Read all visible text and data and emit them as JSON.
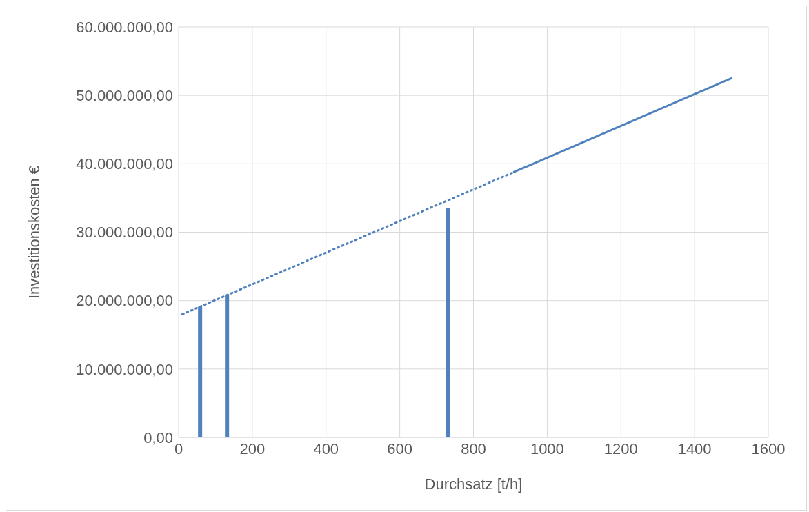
{
  "chart_data": {
    "type": "line",
    "xlabel": "Durchsatz [t/h]",
    "ylabel": "Investitionskosten €",
    "series": [
      {
        "type": "bar",
        "color": "#4f81bd",
        "x": [
          58,
          131,
          731
        ],
        "values": [
          19100000,
          20900000,
          33500000
        ]
      },
      {
        "color": "#4f81bd",
        "line_style": "dotted",
        "x": [
          10,
          910
        ],
        "values": [
          18000000,
          38800000
        ]
      },
      {
        "color": "#4f81bd",
        "line_style": "solid",
        "x": [
          910,
          1500
        ],
        "values": [
          38800000,
          52500000
        ]
      }
    ],
    "xlim": [
      0,
      1600
    ],
    "xticks": [
      0,
      200,
      400,
      600,
      800,
      1000,
      1200,
      1400,
      1600
    ],
    "ylim": [
      0,
      60000000
    ],
    "yticks": [
      {
        "value": 0,
        "label": "0,00"
      },
      {
        "value": 10000000,
        "label": "10.000.000,00"
      },
      {
        "value": 20000000,
        "label": "20.000.000,00"
      },
      {
        "value": 30000000,
        "label": "30.000.000,00"
      },
      {
        "value": 40000000,
        "label": "40.000.000,00"
      },
      {
        "value": 50000000,
        "label": "50.000.000,00"
      },
      {
        "value": 60000000,
        "label": "60.000.000,00"
      }
    ],
    "grid": true,
    "legend": false,
    "marker": "none"
  }
}
